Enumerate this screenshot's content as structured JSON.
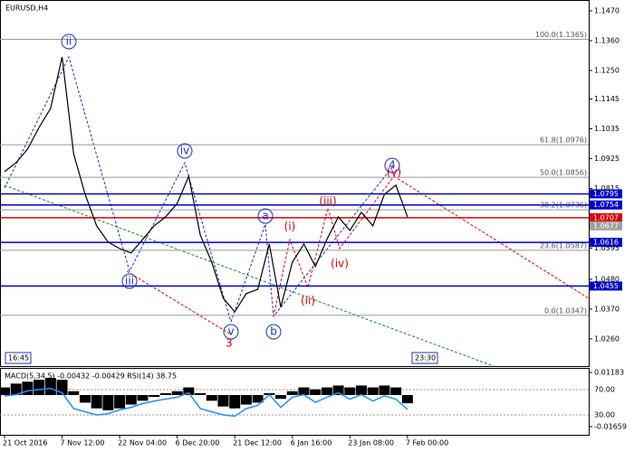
{
  "chart_data": [
    {
      "type": "line",
      "title": "EURUSD,H4",
      "categories": [
        "21 Oct 2016",
        null,
        null,
        null,
        null,
        "7 Nov 12:00",
        null,
        null,
        null,
        null,
        "22 Nov 04:00",
        null,
        null,
        null,
        null,
        "6 Dec 20:00",
        null,
        null,
        null,
        null,
        "21 Dec 12:00",
        null,
        null,
        null,
        null,
        "6 Jan 16:00",
        null,
        null,
        null,
        null,
        "23 Jan 08:00",
        null,
        null,
        null,
        null,
        "7 Feb 00:00"
      ],
      "values": [
        1.0877,
        1.091,
        1.096,
        1.104,
        1.111,
        1.13,
        1.0943,
        1.0793,
        1.0677,
        1.0617,
        1.0593,
        1.0577,
        1.0627,
        1.0677,
        1.071,
        1.076,
        1.086,
        1.0643,
        1.0543,
        1.041,
        1.036,
        1.0427,
        1.0443,
        1.061,
        1.0377,
        1.0543,
        1.061,
        1.0527,
        1.0627,
        1.071,
        1.066,
        1.0727,
        1.0677,
        1.0793,
        1.0827,
        1.071
      ],
      "color": "#000000",
      "ylim": [
        1.0203,
        1.151
      ],
      "yticks": [
        {
          "value": 1.147,
          "label": "1.1470"
        },
        {
          "value": 1.136,
          "label": "1.1360"
        },
        {
          "value": 1.125,
          "label": "1.1250"
        },
        1.1145,
        1.1035,
        1.0925,
        1.0815,
        1.0705,
        1.0595,
        {
          "value": 1.048,
          "label": "1.0480"
        },
        {
          "value": 1.037,
          "label": "1.0370"
        },
        {
          "value": 1.026,
          "label": "1.0260"
        }
      ],
      "price_lines": [
        {
          "value": 1.0795,
          "color": "#0000cc",
          "line": true
        },
        {
          "value": 1.0754,
          "color": "#0000cc",
          "line": true
        },
        {
          "value": 1.0707,
          "color": "#dd0000",
          "line": true
        },
        {
          "value": 1.0677,
          "color": "#a0a0a0",
          "line": false
        },
        {
          "value": 1.0616,
          "color": "#0000cc",
          "line": true
        },
        {
          "value": 1.0455,
          "color": "#0000cc",
          "line": true
        }
      ],
      "fib_levels": [
        {
          "value": 1.1365,
          "label": "100.0(1.1365)"
        },
        {
          "value": 1.0976,
          "label": "61.8(1.0976)"
        },
        {
          "value": 1.0856,
          "label": "50.0(1.0856)"
        },
        {
          "value": 1.0736,
          "label": "38.2(1.0736)"
        },
        {
          "value": 1.0587,
          "label": "23.6(1.0587)"
        },
        {
          "value": 1.0347,
          "label": "0.0(1.0347)"
        }
      ],
      "annotations": [
        {
          "text": "ii",
          "color": "#2030c0"
        },
        {
          "text": "iv",
          "color": "#2030c0"
        },
        {
          "text": "iii",
          "color": "#2030c0"
        },
        {
          "text": "v",
          "color": "#2030c0"
        },
        {
          "text": "3",
          "color": "#dd0000"
        },
        {
          "text": "a",
          "color": "#2030c0"
        },
        {
          "text": "b",
          "color": "#2030c0"
        },
        {
          "text": "(i)",
          "color": "#dd0000"
        },
        {
          "text": "(ii)",
          "color": "#dd0000"
        },
        {
          "text": "(iii)",
          "color": "#dd0000"
        },
        {
          "text": "(iv)",
          "color": "#dd0000"
        },
        {
          "text": "4",
          "color": "#2030c0"
        },
        {
          "text": "(v)",
          "color": "#dd0000"
        }
      ],
      "time_labels": [
        "16:45",
        "23:30"
      ]
    },
    {
      "type": "macd",
      "title": "MACD(5,34,5) -0.00432 -0.00429 RSI(14) 38.75",
      "macd": {
        "color": "#000000",
        "values": [
          0.004,
          0.006,
          0.007,
          0.008,
          0.009,
          0.008,
          0.002,
          -0.004,
          -0.007,
          -0.008,
          -0.007,
          -0.005,
          -0.003,
          -0.001,
          0.001,
          0.002,
          0.004,
          0.001,
          -0.003,
          -0.006,
          -0.007,
          -0.005,
          -0.004,
          0.001,
          -0.002,
          0.002,
          0.004,
          0.003,
          0.004,
          0.005,
          0.004,
          0.005,
          0.004,
          0.005,
          0.004,
          -0.00432
        ]
      },
      "rsi": {
        "color": "#1e90ff",
        "axis": "y2",
        "values": [
          60,
          62,
          68,
          70,
          72,
          65,
          40,
          35,
          30,
          32,
          38,
          42,
          48,
          52,
          55,
          58,
          65,
          40,
          35,
          30,
          28,
          40,
          45,
          62,
          42,
          58,
          62,
          50,
          58,
          65,
          55,
          62,
          52,
          60,
          55,
          38.75
        ]
      },
      "ylim": [
        -0.0204,
        0.0128
      ],
      "yticks": [
        0.01183,
        -0.01659
      ],
      "y2lim": [
        0,
        100
      ],
      "y2ticks": [
        {
          "value": 70,
          "label": "70.00"
        },
        {
          "value": 30,
          "label": "30.00"
        }
      ]
    }
  ]
}
